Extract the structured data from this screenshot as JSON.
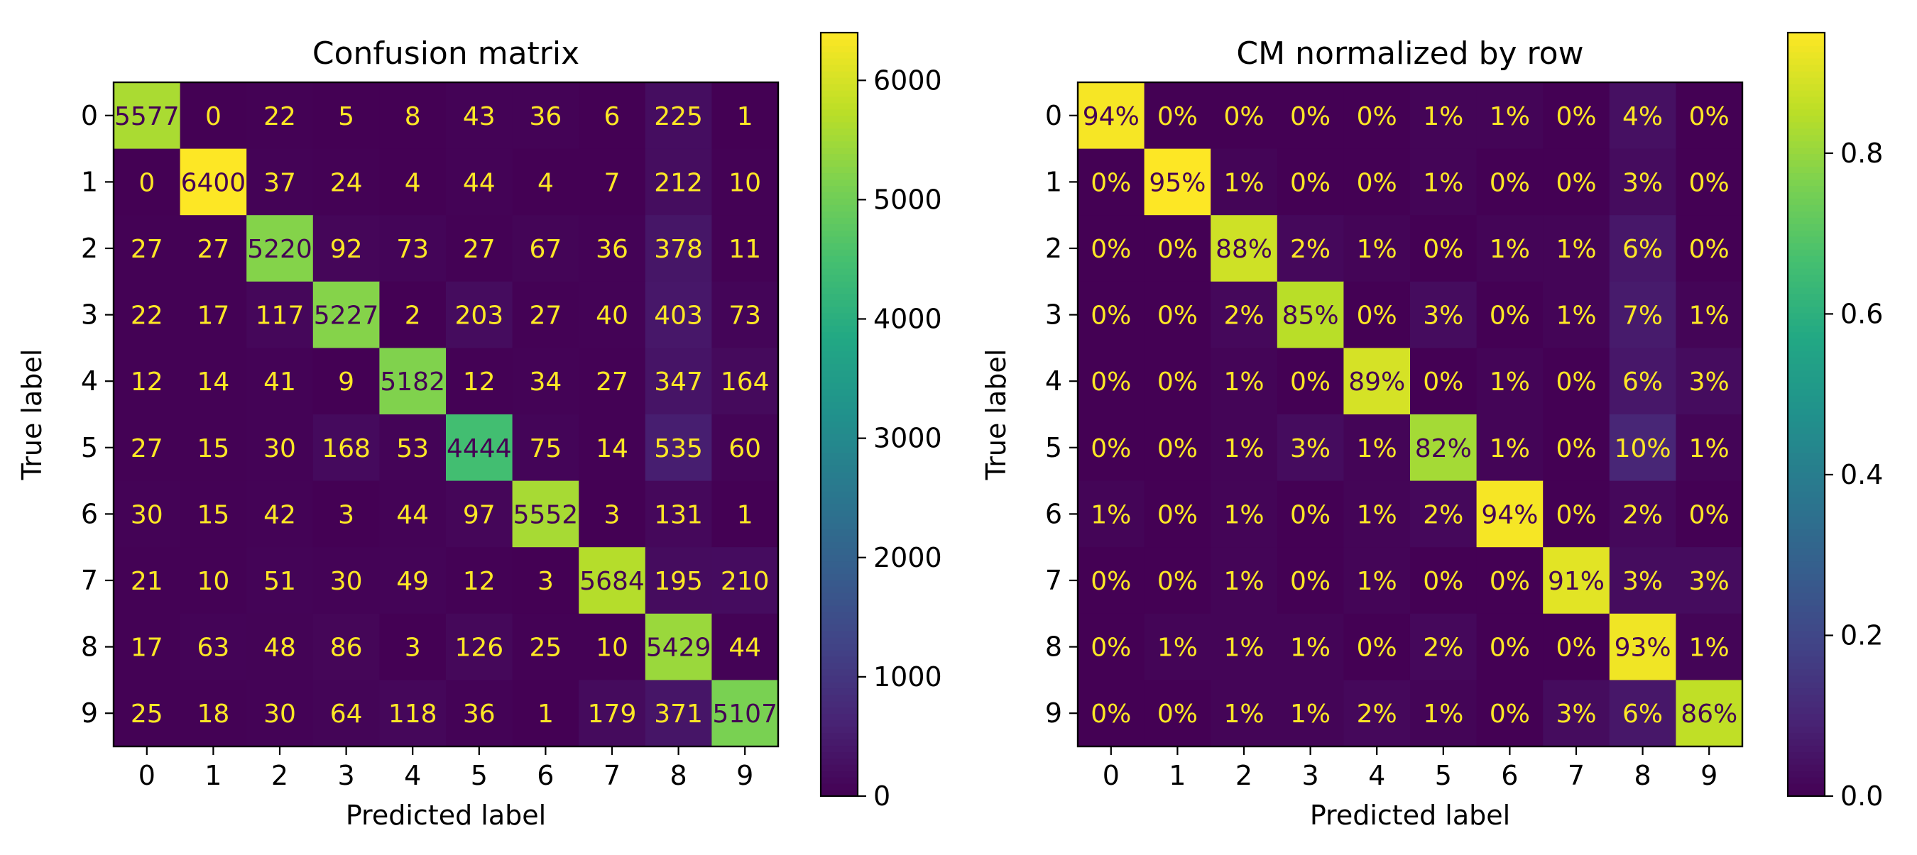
{
  "chart_data": [
    {
      "type": "heatmap",
      "title": "Confusion matrix",
      "xlabel": "Predicted label",
      "ylabel": "True label",
      "x_tick_labels": [
        "0",
        "1",
        "2",
        "3",
        "4",
        "5",
        "6",
        "7",
        "8",
        "9"
      ],
      "y_tick_labels": [
        "0",
        "1",
        "2",
        "3",
        "4",
        "5",
        "6",
        "7",
        "8",
        "9"
      ],
      "values": [
        [
          5577,
          0,
          22,
          5,
          8,
          43,
          36,
          6,
          225,
          1
        ],
        [
          0,
          6400,
          37,
          24,
          4,
          44,
          4,
          7,
          212,
          10
        ],
        [
          27,
          27,
          5220,
          92,
          73,
          27,
          67,
          36,
          378,
          11
        ],
        [
          22,
          17,
          117,
          5227,
          2,
          203,
          27,
          40,
          403,
          73
        ],
        [
          12,
          14,
          41,
          9,
          5182,
          12,
          34,
          27,
          347,
          164
        ],
        [
          27,
          15,
          30,
          168,
          53,
          4444,
          75,
          14,
          535,
          60
        ],
        [
          30,
          15,
          42,
          3,
          44,
          97,
          5552,
          3,
          131,
          1
        ],
        [
          21,
          10,
          51,
          30,
          49,
          12,
          3,
          5684,
          195,
          210
        ],
        [
          17,
          63,
          48,
          86,
          3,
          126,
          25,
          10,
          5429,
          44
        ],
        [
          25,
          18,
          30,
          64,
          118,
          36,
          1,
          179,
          371,
          5107
        ]
      ],
      "cell_labels": [
        [
          "5577",
          "0",
          "22",
          "5",
          "8",
          "43",
          "36",
          "6",
          "225",
          "1"
        ],
        [
          "0",
          "6400",
          "37",
          "24",
          "4",
          "44",
          "4",
          "7",
          "212",
          "10"
        ],
        [
          "27",
          "27",
          "5220",
          "92",
          "73",
          "27",
          "67",
          "36",
          "378",
          "11"
        ],
        [
          "22",
          "17",
          "117",
          "5227",
          "2",
          "203",
          "27",
          "40",
          "403",
          "73"
        ],
        [
          "12",
          "14",
          "41",
          "9",
          "5182",
          "12",
          "34",
          "27",
          "347",
          "164"
        ],
        [
          "27",
          "15",
          "30",
          "168",
          "53",
          "4444",
          "75",
          "14",
          "535",
          "60"
        ],
        [
          "30",
          "15",
          "42",
          "3",
          "44",
          "97",
          "5552",
          "3",
          "131",
          "1"
        ],
        [
          "21",
          "10",
          "51",
          "30",
          "49",
          "12",
          "3",
          "5684",
          "195",
          "210"
        ],
        [
          "17",
          "63",
          "48",
          "86",
          "3",
          "126",
          "25",
          "10",
          "5429",
          "44"
        ],
        [
          "25",
          "18",
          "30",
          "64",
          "118",
          "36",
          "1",
          "179",
          "371",
          "5107"
        ]
      ],
      "colormap": "viridis",
      "color_range": [
        0,
        6400
      ],
      "colorbar_ticks": [
        0,
        1000,
        2000,
        3000,
        4000,
        5000,
        6000
      ],
      "colorbar_tick_labels": [
        "0",
        "1000",
        "2000",
        "3000",
        "4000",
        "5000",
        "6000"
      ],
      "text_color_low": "#fde725",
      "text_color_high": "#440154",
      "grid": false
    },
    {
      "type": "heatmap",
      "title": "CM normalized by row",
      "xlabel": "Predicted label",
      "ylabel": "True label",
      "x_tick_labels": [
        "0",
        "1",
        "2",
        "3",
        "4",
        "5",
        "6",
        "7",
        "8",
        "9"
      ],
      "y_tick_labels": [
        "0",
        "1",
        "2",
        "3",
        "4",
        "5",
        "6",
        "7",
        "8",
        "9"
      ],
      "values": [
        [
          0.94,
          0.0,
          0.0,
          0.0,
          0.0,
          0.01,
          0.01,
          0.0,
          0.04,
          0.0
        ],
        [
          0.0,
          0.95,
          0.01,
          0.0,
          0.0,
          0.01,
          0.0,
          0.0,
          0.03,
          0.0
        ],
        [
          0.0,
          0.0,
          0.88,
          0.02,
          0.01,
          0.0,
          0.01,
          0.01,
          0.06,
          0.0
        ],
        [
          0.0,
          0.0,
          0.02,
          0.85,
          0.0,
          0.03,
          0.0,
          0.01,
          0.07,
          0.01
        ],
        [
          0.0,
          0.0,
          0.01,
          0.0,
          0.89,
          0.0,
          0.01,
          0.0,
          0.06,
          0.03
        ],
        [
          0.0,
          0.0,
          0.01,
          0.03,
          0.01,
          0.82,
          0.01,
          0.0,
          0.1,
          0.01
        ],
        [
          0.01,
          0.0,
          0.01,
          0.0,
          0.01,
          0.02,
          0.94,
          0.0,
          0.02,
          0.0
        ],
        [
          0.0,
          0.0,
          0.01,
          0.0,
          0.01,
          0.0,
          0.0,
          0.91,
          0.03,
          0.03
        ],
        [
          0.0,
          0.01,
          0.01,
          0.01,
          0.0,
          0.02,
          0.0,
          0.0,
          0.93,
          0.01
        ],
        [
          0.0,
          0.0,
          0.01,
          0.01,
          0.02,
          0.01,
          0.0,
          0.03,
          0.06,
          0.86
        ]
      ],
      "cell_labels": [
        [
          "94%",
          "0%",
          "0%",
          "0%",
          "0%",
          "1%",
          "1%",
          "0%",
          "4%",
          "0%"
        ],
        [
          "0%",
          "95%",
          "1%",
          "0%",
          "0%",
          "1%",
          "0%",
          "0%",
          "3%",
          "0%"
        ],
        [
          "0%",
          "0%",
          "88%",
          "2%",
          "1%",
          "0%",
          "1%",
          "1%",
          "6%",
          "0%"
        ],
        [
          "0%",
          "0%",
          "2%",
          "85%",
          "0%",
          "3%",
          "0%",
          "1%",
          "7%",
          "1%"
        ],
        [
          "0%",
          "0%",
          "1%",
          "0%",
          "89%",
          "0%",
          "1%",
          "0%",
          "6%",
          "3%"
        ],
        [
          "0%",
          "0%",
          "1%",
          "3%",
          "1%",
          "82%",
          "1%",
          "0%",
          "10%",
          "1%"
        ],
        [
          "1%",
          "0%",
          "1%",
          "0%",
          "1%",
          "2%",
          "94%",
          "0%",
          "2%",
          "0%"
        ],
        [
          "0%",
          "0%",
          "1%",
          "0%",
          "1%",
          "0%",
          "0%",
          "91%",
          "3%",
          "3%"
        ],
        [
          "0%",
          "1%",
          "1%",
          "1%",
          "0%",
          "2%",
          "0%",
          "0%",
          "93%",
          "1%"
        ],
        [
          "0%",
          "0%",
          "1%",
          "1%",
          "2%",
          "1%",
          "0%",
          "3%",
          "6%",
          "86%"
        ]
      ],
      "colormap": "viridis",
      "color_range": [
        0,
        0.95
      ],
      "colorbar_ticks": [
        0.0,
        0.2,
        0.4,
        0.6,
        0.8
      ],
      "colorbar_tick_labels": [
        "0.0",
        "0.2",
        "0.4",
        "0.6",
        "0.8"
      ],
      "text_color_low": "#fde725",
      "text_color_high": "#440154",
      "grid": false
    }
  ]
}
